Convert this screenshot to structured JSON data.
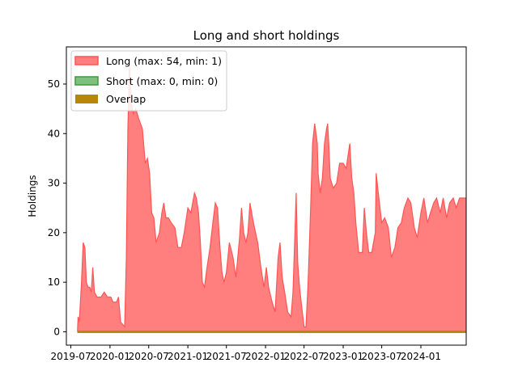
{
  "chart_data": {
    "type": "area",
    "title": "Long and short holdings",
    "xlabel": "",
    "ylabel": "Holdings",
    "x_ticks": [
      "2019-07",
      "2020-01",
      "2020-07",
      "2021-01",
      "2021-07",
      "2022-01",
      "2022-07",
      "2023-01",
      "2023-07",
      "2024-01"
    ],
    "y_ticks": [
      0,
      10,
      20,
      30,
      40,
      50
    ],
    "xlim": [
      "2019-06-10",
      "2024-08-01"
    ],
    "ylim": [
      -2.7,
      57.5
    ],
    "grid": false,
    "legend_position": "top-left",
    "colors": {
      "long_fill": "#ff7f7f",
      "long_edge": "#ff5555",
      "short_fill": "#7fbf7f",
      "short_edge": "#3c9a3c",
      "overlap": "#b8860b"
    },
    "series": [
      {
        "name": "Long (max: 54, min: 1)",
        "points": [
          [
            "2019-08-01",
            0
          ],
          [
            "2019-08-04",
            3
          ],
          [
            "2019-08-10",
            2
          ],
          [
            "2019-08-20",
            10
          ],
          [
            "2019-08-28",
            18
          ],
          [
            "2019-09-05",
            17
          ],
          [
            "2019-09-12",
            10
          ],
          [
            "2019-09-20",
            9
          ],
          [
            "2019-09-28",
            9
          ],
          [
            "2019-10-05",
            8
          ],
          [
            "2019-10-12",
            13
          ],
          [
            "2019-10-20",
            8
          ],
          [
            "2019-11-01",
            7
          ],
          [
            "2019-11-20",
            7
          ],
          [
            "2019-12-05",
            8
          ],
          [
            "2019-12-20",
            7
          ],
          [
            "2020-01-05",
            7
          ],
          [
            "2020-01-15",
            6
          ],
          [
            "2020-02-01",
            6
          ],
          [
            "2020-02-10",
            7
          ],
          [
            "2020-02-20",
            2
          ],
          [
            "2020-03-10",
            1
          ],
          [
            "2020-03-18",
            15
          ],
          [
            "2020-03-25",
            41
          ],
          [
            "2020-04-01",
            54
          ],
          [
            "2020-04-10",
            46
          ],
          [
            "2020-04-20",
            44
          ],
          [
            "2020-05-01",
            45
          ],
          [
            "2020-05-15",
            43
          ],
          [
            "2020-06-01",
            41
          ],
          [
            "2020-06-15",
            34
          ],
          [
            "2020-06-25",
            35
          ],
          [
            "2020-07-05",
            32
          ],
          [
            "2020-07-15",
            24
          ],
          [
            "2020-07-25",
            23
          ],
          [
            "2020-08-05",
            18
          ],
          [
            "2020-08-20",
            20
          ],
          [
            "2020-09-01",
            24
          ],
          [
            "2020-09-10",
            26
          ],
          [
            "2020-09-20",
            23
          ],
          [
            "2020-10-01",
            23
          ],
          [
            "2020-10-15",
            22
          ],
          [
            "2020-11-01",
            21
          ],
          [
            "2020-11-15",
            17
          ],
          [
            "2020-12-01",
            17
          ],
          [
            "2020-12-15",
            20
          ],
          [
            "2021-01-01",
            25
          ],
          [
            "2021-01-15",
            24
          ],
          [
            "2021-02-01",
            28
          ],
          [
            "2021-02-10",
            27
          ],
          [
            "2021-02-20",
            24
          ],
          [
            "2021-03-01",
            18
          ],
          [
            "2021-03-10",
            10
          ],
          [
            "2021-03-20",
            9
          ],
          [
            "2021-04-01",
            13
          ],
          [
            "2021-04-15",
            17
          ],
          [
            "2021-05-01",
            23
          ],
          [
            "2021-05-10",
            26
          ],
          [
            "2021-05-20",
            25
          ],
          [
            "2021-06-01",
            17
          ],
          [
            "2021-06-10",
            12
          ],
          [
            "2021-06-20",
            10
          ],
          [
            "2021-07-01",
            12
          ],
          [
            "2021-07-15",
            18
          ],
          [
            "2021-08-01",
            15
          ],
          [
            "2021-08-15",
            11
          ],
          [
            "2021-09-01",
            19
          ],
          [
            "2021-09-10",
            25
          ],
          [
            "2021-09-20",
            20
          ],
          [
            "2021-10-01",
            18
          ],
          [
            "2021-10-10",
            20
          ],
          [
            "2021-10-20",
            26
          ],
          [
            "2021-11-01",
            23
          ],
          [
            "2021-11-10",
            21
          ],
          [
            "2021-11-25",
            18
          ],
          [
            "2021-12-10",
            13
          ],
          [
            "2021-12-25",
            9
          ],
          [
            "2022-01-05",
            13
          ],
          [
            "2022-01-15",
            9
          ],
          [
            "2022-02-01",
            6
          ],
          [
            "2022-02-15",
            4
          ],
          [
            "2022-03-01",
            15
          ],
          [
            "2022-03-10",
            18
          ],
          [
            "2022-03-20",
            11
          ],
          [
            "2022-04-01",
            8
          ],
          [
            "2022-04-15",
            4
          ],
          [
            "2022-05-01",
            3
          ],
          [
            "2022-05-10",
            8
          ],
          [
            "2022-05-20",
            21
          ],
          [
            "2022-05-25",
            28
          ],
          [
            "2022-06-01",
            14
          ],
          [
            "2022-06-10",
            9
          ],
          [
            "2022-06-20",
            5
          ],
          [
            "2022-07-01",
            1
          ],
          [
            "2022-07-10",
            1
          ],
          [
            "2022-07-20",
            10
          ],
          [
            "2022-08-01",
            25
          ],
          [
            "2022-08-10",
            38
          ],
          [
            "2022-08-20",
            42
          ],
          [
            "2022-09-01",
            38
          ],
          [
            "2022-09-05",
            32
          ],
          [
            "2022-09-15",
            28
          ],
          [
            "2022-09-25",
            31
          ],
          [
            "2022-10-05",
            38
          ],
          [
            "2022-10-15",
            41
          ],
          [
            "2022-10-20",
            42
          ],
          [
            "2022-10-25",
            38
          ],
          [
            "2022-11-01",
            31
          ],
          [
            "2022-11-15",
            29
          ],
          [
            "2022-12-01",
            30
          ],
          [
            "2022-12-15",
            34
          ],
          [
            "2023-01-01",
            34
          ],
          [
            "2023-01-15",
            33
          ],
          [
            "2023-02-01",
            38
          ],
          [
            "2023-02-10",
            31
          ],
          [
            "2023-02-20",
            28
          ],
          [
            "2023-03-01",
            22
          ],
          [
            "2023-03-15",
            16
          ],
          [
            "2023-04-01",
            16
          ],
          [
            "2023-04-10",
            25
          ],
          [
            "2023-04-20",
            20
          ],
          [
            "2023-05-01",
            16
          ],
          [
            "2023-05-15",
            16
          ],
          [
            "2023-06-01",
            20
          ],
          [
            "2023-06-05",
            32
          ],
          [
            "2023-06-15",
            28
          ],
          [
            "2023-07-01",
            22
          ],
          [
            "2023-07-15",
            23
          ],
          [
            "2023-08-01",
            21
          ],
          [
            "2023-08-15",
            15
          ],
          [
            "2023-09-01",
            17
          ],
          [
            "2023-09-15",
            21
          ],
          [
            "2023-10-01",
            22
          ],
          [
            "2023-10-15",
            25
          ],
          [
            "2023-11-01",
            27
          ],
          [
            "2023-11-15",
            26
          ],
          [
            "2023-12-01",
            21
          ],
          [
            "2023-12-15",
            19
          ],
          [
            "2024-01-01",
            24
          ],
          [
            "2024-01-15",
            27
          ],
          [
            "2024-02-01",
            22
          ],
          [
            "2024-02-15",
            24
          ],
          [
            "2024-03-01",
            26
          ],
          [
            "2024-03-15",
            27
          ],
          [
            "2024-04-01",
            24
          ],
          [
            "2024-04-15",
            27
          ],
          [
            "2024-05-01",
            23
          ],
          [
            "2024-05-15",
            26
          ],
          [
            "2024-06-01",
            27
          ],
          [
            "2024-06-15",
            25
          ],
          [
            "2024-07-01",
            27
          ],
          [
            "2024-08-01",
            27
          ]
        ]
      },
      {
        "name": "Short (max: 0, min: 0)",
        "points": [
          [
            "2019-08-01",
            0
          ],
          [
            "2024-08-01",
            0
          ]
        ]
      },
      {
        "name": "Overlap",
        "points": [
          [
            "2019-08-01",
            0
          ],
          [
            "2024-08-01",
            0
          ]
        ]
      }
    ]
  }
}
